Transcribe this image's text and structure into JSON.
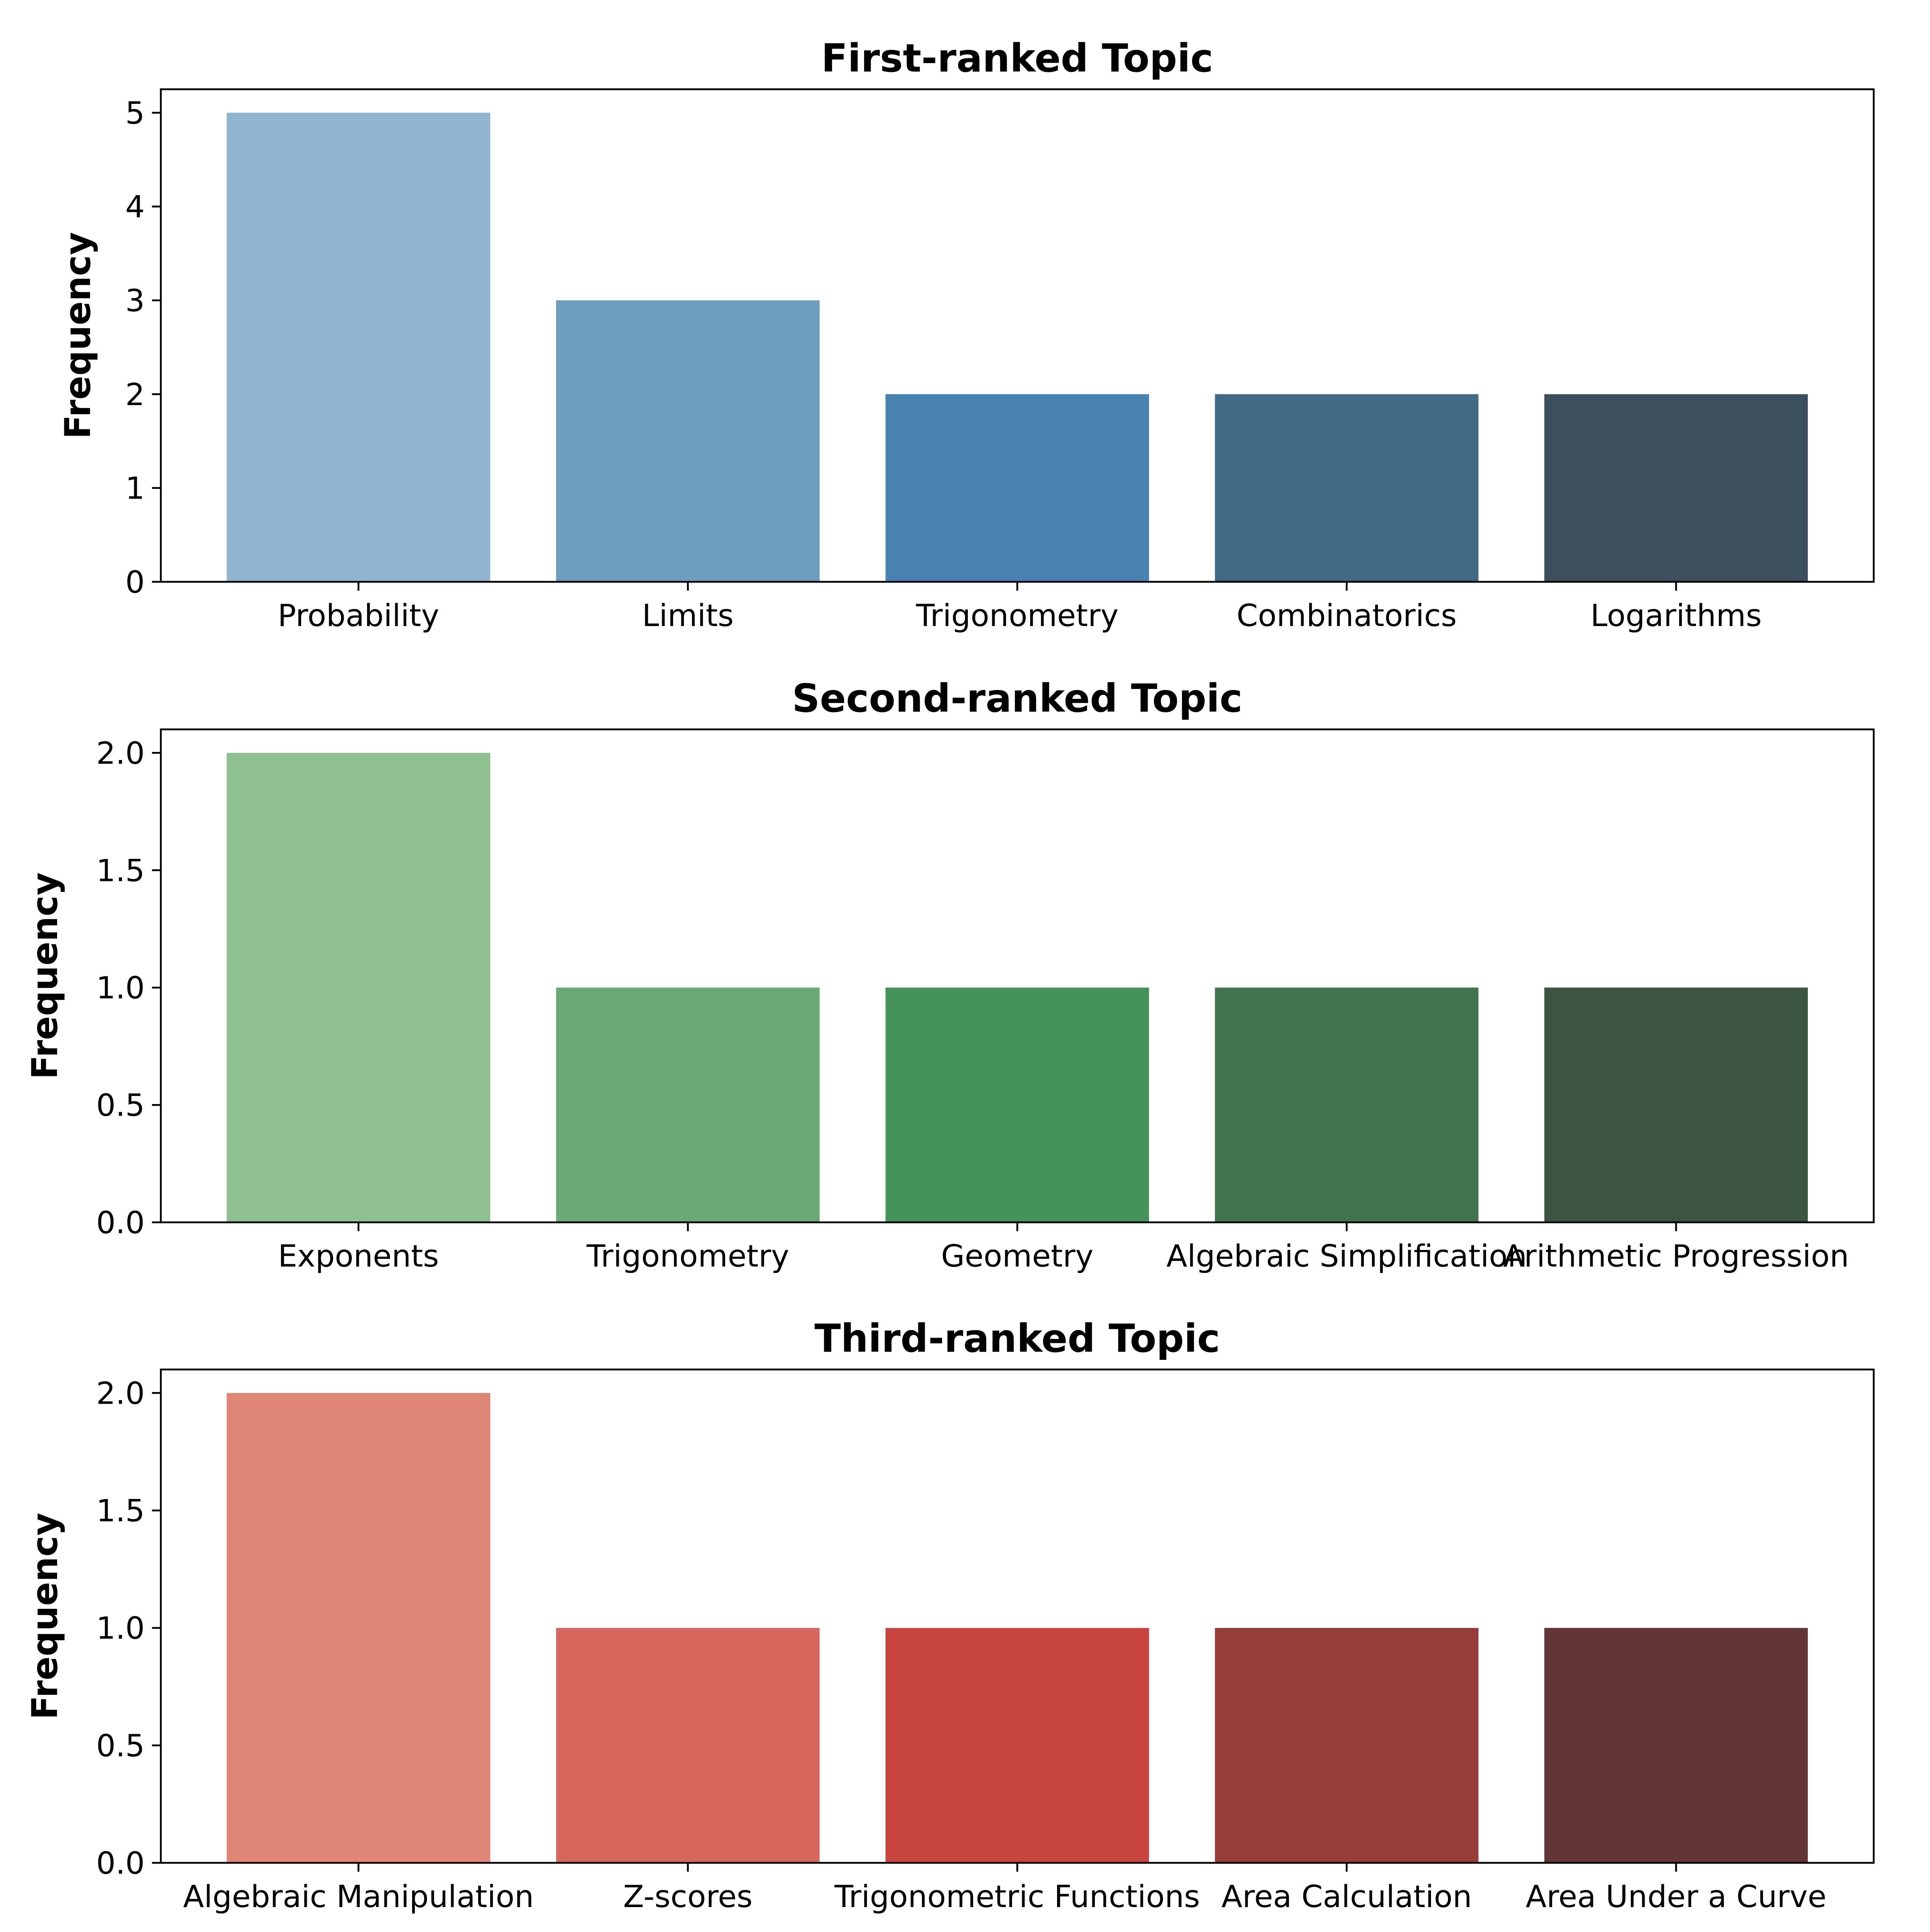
{
  "chart_data": [
    {
      "type": "bar",
      "title": "First-ranked Topic",
      "xlabel": "",
      "ylabel": "Frequency",
      "categories": [
        "Probability",
        "Limits",
        "Trigonometry",
        "Combinatorics",
        "Logarithms"
      ],
      "values": [
        5,
        3,
        2,
        2,
        2
      ],
      "ylim": [
        0,
        5.25
      ],
      "yticks": [
        0,
        1,
        2,
        3,
        4,
        5
      ],
      "ytick_labels": [
        "0",
        "1",
        "2",
        "3",
        "4",
        "5"
      ],
      "colors": [
        "#92b5cf",
        "#6d9ebf",
        "#4882b0",
        "#426986",
        "#3c4f5e"
      ],
      "grid": false
    },
    {
      "type": "bar",
      "title": "Second-ranked Topic",
      "xlabel": "",
      "ylabel": "Frequency",
      "categories": [
        "Exponents",
        "Trigonometry",
        "Geometry",
        "Algebraic Simplification",
        "Arithmetic Progression"
      ],
      "values": [
        2,
        1,
        1,
        1,
        1
      ],
      "ylim": [
        0,
        2.1
      ],
      "yticks": [
        0,
        0.5,
        1,
        1.5,
        2
      ],
      "ytick_labels": [
        "0.0",
        "0.5",
        "1.0",
        "1.5",
        "2.0"
      ],
      "colors": [
        "#8fc08f",
        "#6aa976",
        "#45925b",
        "#41744f",
        "#3b5443"
      ],
      "grid": false
    },
    {
      "type": "bar",
      "title": "Third-ranked Topic",
      "xlabel": "",
      "ylabel": "Frequency",
      "categories": [
        "Algebraic Manipulation",
        "Z-scores",
        "Trigonometric Functions",
        "Area Calculation",
        "Area Under a Curve"
      ],
      "values": [
        2,
        1,
        1,
        1,
        1
      ],
      "ylim": [
        0,
        2.1
      ],
      "yticks": [
        0,
        0.5,
        1,
        1.5,
        2
      ],
      "ytick_labels": [
        "0.0",
        "0.5",
        "1.0",
        "1.5",
        "2.0"
      ],
      "colors": [
        "#e08676",
        "#d7675d",
        "#c8443e",
        "#963d3a",
        "#643536"
      ],
      "grid": false
    }
  ]
}
